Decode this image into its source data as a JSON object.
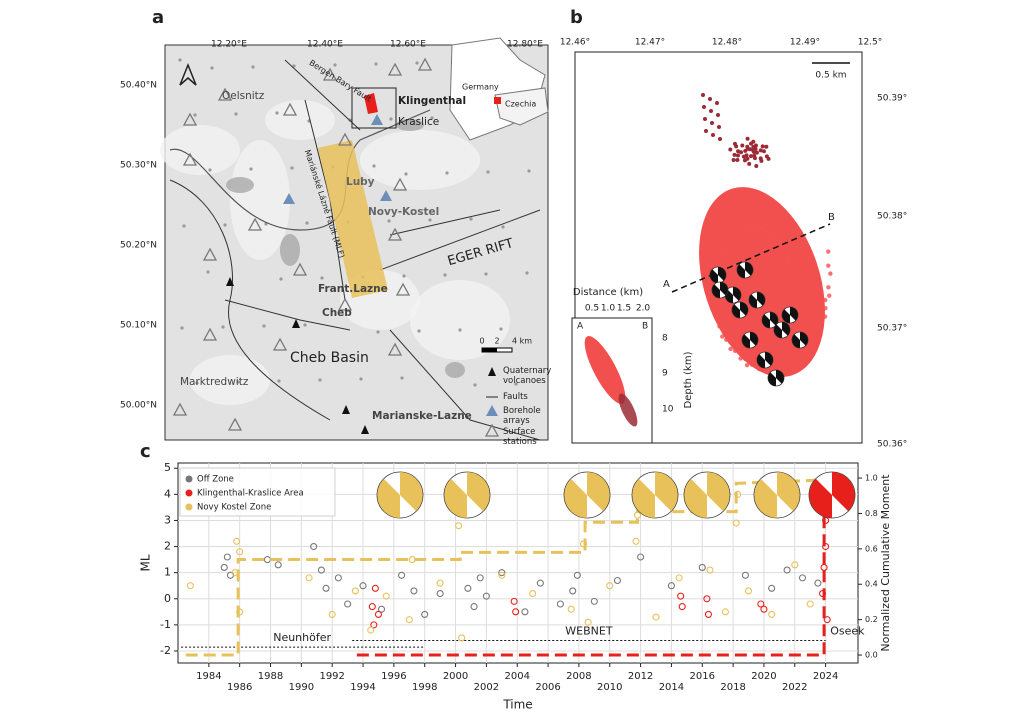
{
  "panel_labels": [
    "a",
    "b",
    "c"
  ],
  "map_a": {
    "lon_ticks": [
      "12.20°E",
      "12.40°E",
      "12.60°E",
      "12.80°E"
    ],
    "lat_ticks": [
      "50.40°N",
      "50.30°N",
      "50.20°N",
      "50.10°N",
      "50.00°N"
    ],
    "places": [
      "Oelsnitz",
      "Klingenthal",
      "Kraslice",
      "Luby",
      "Novy-Kostel",
      "Frant.Lazne",
      "Cheb",
      "Cheb Basin",
      "Marktredwitz",
      "Marianske-Lazne"
    ],
    "rift": "EGER RIFT",
    "faults": [
      "Bergen Bary Fault",
      "Mariánské Lázně Fault (MLF)"
    ],
    "inset": [
      "Germany",
      "Czechia"
    ],
    "scale": [
      "0",
      "2",
      "4 km"
    ],
    "legend": [
      "Quaternary volcanoes",
      "Faults",
      "Borehole arrays",
      "Surface stations"
    ]
  },
  "map_b": {
    "lon_ticks": [
      "12.46°",
      "12.47°",
      "12.48°",
      "12.49°",
      "12.5°"
    ],
    "lat_ticks": [
      "50.39°",
      "50.38°",
      "50.37°",
      "50.36°"
    ],
    "scale": "0.5 km",
    "profile": [
      "A",
      "B"
    ],
    "section": {
      "xlabel": "Distance (km)",
      "xticks": [
        "0.5",
        "1.0",
        "1.5",
        "2.0"
      ],
      "ylabel": "Depth (km)",
      "yticks": [
        "8",
        "9",
        "10"
      ],
      "ends": [
        "A",
        "B"
      ]
    }
  },
  "chart_data": {
    "type": "scatter",
    "xlabel": "Time",
    "ylabel": "ML",
    "y2label": "Normalized Cumulative Moment",
    "xlim": [
      1982,
      2026.1
    ],
    "ylim": [
      -2.46,
      5.2
    ],
    "y2lim": [
      -0.045,
      1.085
    ],
    "xticks": [
      1984,
      1986,
      1988,
      1990,
      1992,
      1994,
      1996,
      1998,
      2000,
      2002,
      2004,
      2006,
      2008,
      2010,
      2012,
      2014,
      2016,
      2018,
      2020,
      2022,
      2024
    ],
    "yticks": [
      -2,
      -1,
      0,
      1,
      2,
      3,
      4,
      5
    ],
    "y2ticks": [
      {
        "value": 0,
        "label": "0.0"
      },
      0.2,
      0.4,
      0.6,
      0.8,
      {
        "value": 1,
        "label": "1.0"
      }
    ],
    "grid": true,
    "legend": "upper left",
    "series": [
      {
        "name": "Off Zone",
        "color": "#777777",
        "x": [
          1985.0,
          1985.2,
          1985.4,
          1987.8,
          1988.5,
          1990.8,
          1991.3,
          1991.6,
          1992.4,
          1993.0,
          1994.0,
          1995.2,
          1996.5,
          1997.3,
          1998.0,
          1999.0,
          2000.8,
          2001.2,
          2001.6,
          2002.0,
          2003.0,
          2004.5,
          2005.5,
          2006.8,
          2007.6,
          2007.9,
          2009.0,
          2010.5,
          2012.0,
          2014.0,
          2016.0,
          2018.8,
          2020.5,
          2021.5,
          2022.5,
          2023.5
        ],
        "values": [
          1.2,
          1.6,
          0.9,
          1.5,
          1.3,
          2.0,
          1.1,
          0.4,
          0.8,
          -0.2,
          0.5,
          -0.4,
          0.9,
          0.3,
          -0.6,
          0.2,
          0.4,
          -0.3,
          0.8,
          0.1,
          1.0,
          -0.5,
          0.6,
          -0.2,
          0.3,
          0.9,
          -0.1,
          0.7,
          1.6,
          0.5,
          1.2,
          0.9,
          0.4,
          1.1,
          0.8,
          0.6
        ]
      },
      {
        "name": "Klingenthal-Kraslice Area",
        "color": "#e8201c",
        "x": [
          1994.6,
          1994.7,
          1994.8,
          1995.0,
          2003.8,
          2003.9,
          2014.6,
          2014.7,
          2016.3,
          2016.4,
          2019.8,
          2020.0,
          2023.8,
          2023.9,
          2024.0,
          2024.0,
          2024.1,
          2024.1
        ],
        "values": [
          -0.3,
          -1.0,
          0.4,
          -0.6,
          -0.1,
          -0.5,
          0.1,
          -0.3,
          0.0,
          -0.6,
          -0.2,
          -0.4,
          0.2,
          1.2,
          2.0,
          3.0,
          -0.8,
          3.7
        ]
      },
      {
        "name": "Novy Kostel Zone",
        "color": "#e9c15a",
        "x": [
          1982.8,
          1985.7,
          1985.8,
          1985.9,
          1986.0,
          1986.0,
          1990.5,
          1992.0,
          1993.5,
          1994.5,
          1995.5,
          1997.0,
          1997.2,
          1999.0,
          2000.2,
          2000.3,
          2000.4,
          2003.0,
          2005.0,
          2007.5,
          2008.3,
          2008.4,
          2008.6,
          2010.0,
          2011.7,
          2011.8,
          2013.0,
          2014.5,
          2016.5,
          2017.5,
          2018.2,
          2018.3,
          2019.0,
          2020.5,
          2022.0,
          2023.0
        ],
        "values": [
          0.5,
          1.0,
          2.2,
          3.3,
          -0.5,
          1.8,
          0.8,
          -0.6,
          0.3,
          -1.2,
          0.1,
          -0.8,
          1.5,
          0.6,
          2.8,
          3.3,
          -1.5,
          0.9,
          0.2,
          -0.4,
          2.1,
          3.8,
          -0.9,
          0.5,
          2.2,
          3.2,
          -0.7,
          0.8,
          1.1,
          -0.5,
          2.9,
          4.0,
          0.3,
          -0.6,
          1.3,
          -0.2
        ]
      }
    ],
    "cumulative": [
      {
        "color": "#e9c15a",
        "axis": "y2",
        "x": [
          1982.5,
          1985.9,
          1985.9,
          2000.3,
          2000.3,
          2008.4,
          2008.4,
          2011.8,
          2011.8,
          2018.2,
          2018.2,
          2024.0
        ],
        "values": [
          0,
          0,
          0.54,
          0.54,
          0.58,
          0.58,
          0.75,
          0.75,
          0.81,
          0.81,
          0.97,
          0.99
        ]
      },
      {
        "color": "#e8201c",
        "axis": "y2",
        "x": [
          1993.6,
          2023.9,
          2023.9,
          2024.2
        ],
        "values": [
          0,
          0,
          1,
          1
        ]
      }
    ],
    "networks": [
      {
        "label": "Neunhöfer",
        "x": [
          1982.2,
          1997.9
        ],
        "y": -1.85
      },
      {
        "label": "WEBNET",
        "x": [
          1993.3,
          2024.0
        ],
        "y": -1.6
      }
    ],
    "annotation": "Oseek"
  }
}
